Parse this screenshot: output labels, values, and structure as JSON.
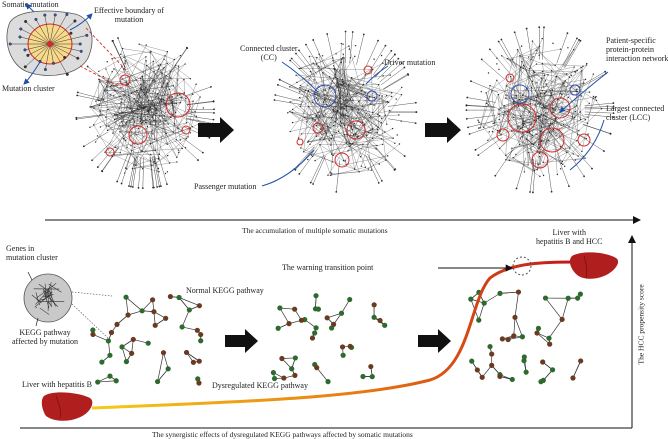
{
  "labels": {
    "somatic_mutation": "Somatic mutation",
    "effective_boundary_1": "Effective boundary of",
    "effective_boundary_2": "mutation",
    "mutation_cluster": "Mutation cluster",
    "connected_cluster_1": "Connected cluster",
    "connected_cluster_2": "(CC)",
    "driver_mutation": "Driver mutation",
    "passenger_mutation": "Passenger mutation",
    "ppi_1": "Patient-specific",
    "ppi_2": "protein-protein",
    "ppi_3": "interaction network",
    "lcc_1": "Largest connected",
    "lcc_2": "cluster (LCC)",
    "top_axis": "The accumulation of multiple somatic mutations",
    "genes_1": "Genes in",
    "genes_2": "mutation cluster",
    "kegg_affected_1": "KEGG pathway",
    "kegg_affected_2": "affected by mutation",
    "normal_kegg": "Normal KEGG pathway",
    "warning_point": "The warning transition point",
    "liver_hcc_1": "Liver with",
    "liver_hcc_2": "hepatitis B and HCC",
    "dysregulated_kegg": "Dysregulated KEGG pathway",
    "liver_hb": "Liver with hepatitis B",
    "hcc_score": "The HCC propensity score",
    "bottom_axis": "The synergistic effects of dysregulated KEGG pathways affected by somatic mutations"
  },
  "colors": {
    "network": "#2b2b2b",
    "cluster_ring": "#d42a2a",
    "connected_ring": "#3a4fb0",
    "arrow": "#1f4fa8",
    "node_green": "#2d6a2d",
    "node_brown": "#6b3a22",
    "liver": "#b01e1e",
    "curve_start": "#f2c018",
    "curve_end": "#c0161a",
    "cluster_fill": "#f6d98a"
  }
}
